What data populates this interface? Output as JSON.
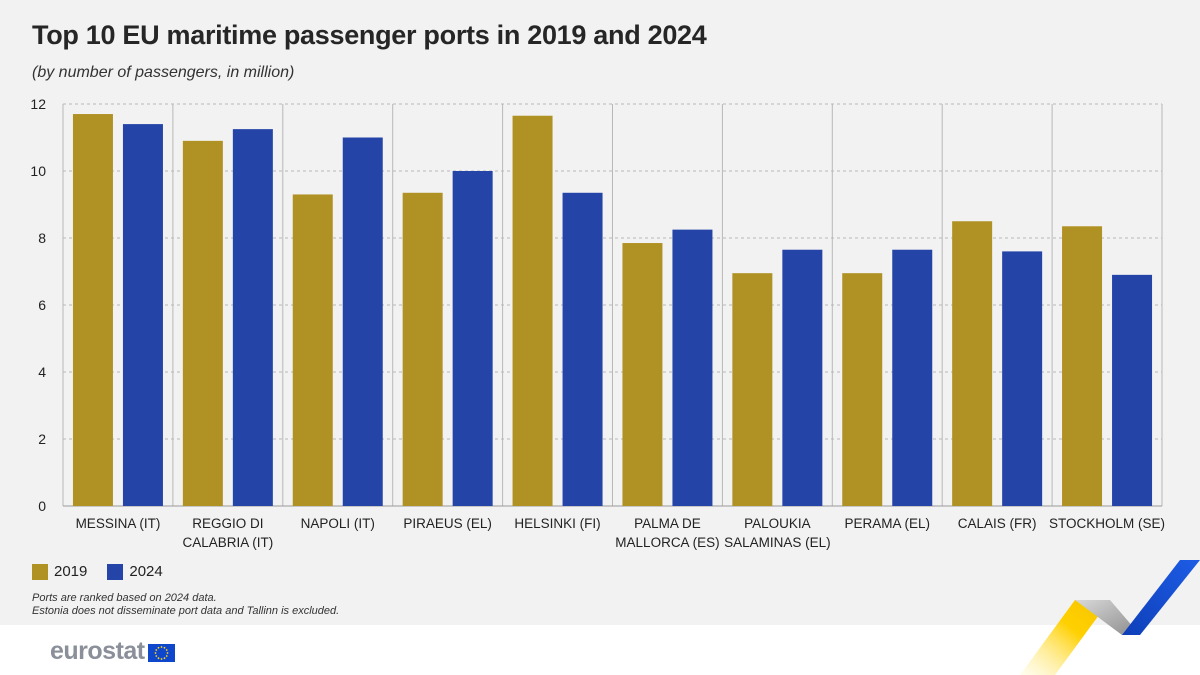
{
  "title": "Top 10 EU maritime passenger ports in 2019 and 2024",
  "subtitle": "(by number of passengers, in million)",
  "colors": {
    "s2019": "#b09224",
    "s2024": "#2444a8",
    "background": "#f2f2f2",
    "grid": "#b8b8b8"
  },
  "legend": {
    "s2019": "2019",
    "s2024": "2024"
  },
  "notes": [
    "Ports are ranked based on 2024 data.",
    "Estonia does not disseminate port data and Tallinn is excluded."
  ],
  "logo": {
    "text": "eurostat",
    "flag_icon": "eu-flag-icon"
  },
  "chart_data": {
    "type": "bar",
    "categories": [
      [
        "MESSINA (IT)"
      ],
      [
        "REGGIO DI",
        "CALABRIA (IT)"
      ],
      [
        "NAPOLI (IT)"
      ],
      [
        "PIRAEUS (EL)"
      ],
      [
        "HELSINKI (FI)"
      ],
      [
        "PALMA DE",
        "MALLORCA (ES)"
      ],
      [
        "PALOUKIA",
        "SALAMINAS (EL)"
      ],
      [
        "PERAMA (EL)"
      ],
      [
        "CALAIS (FR)"
      ],
      [
        "STOCKHOLM (SE)"
      ]
    ],
    "series": [
      {
        "name": "2019",
        "values": [
          11.7,
          10.9,
          9.3,
          9.35,
          11.65,
          7.85,
          6.95,
          6.95,
          8.5,
          8.35
        ]
      },
      {
        "name": "2024",
        "values": [
          11.4,
          11.25,
          11.0,
          10.0,
          9.35,
          8.25,
          7.65,
          7.65,
          7.6,
          6.9
        ]
      }
    ],
    "ylim": [
      0,
      12
    ],
    "yticks": [
      0,
      2,
      4,
      6,
      8,
      10,
      12
    ],
    "grid": true,
    "legend_position": "bottom-left"
  }
}
